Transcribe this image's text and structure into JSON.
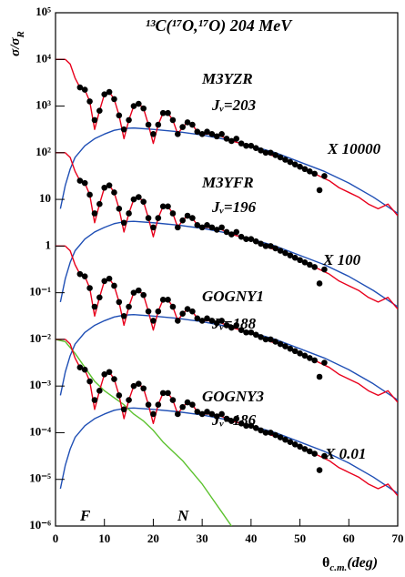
{
  "chart_data": {
    "type": "line",
    "title": "¹³C(¹⁷O,¹⁷O) 204 MeV",
    "ylabel": "σ/σ",
    "ylabel_sub": "R",
    "xlabel": "θ",
    "xlabel_sub": "c.m.",
    "xlabel_unit": "(deg)",
    "yscale": "log",
    "grid": false,
    "xlim": [
      0,
      70
    ],
    "xticks": [
      0,
      10,
      20,
      30,
      40,
      50,
      60,
      70
    ],
    "ylim": [
      1e-06,
      100000.0
    ],
    "yticks": [
      {
        "value": 100000.0,
        "label": "10⁵"
      },
      {
        "value": 10000.0,
        "label": "10⁴"
      },
      {
        "value": 1000.0,
        "label": "10³"
      },
      {
        "value": 100.0,
        "label": "10²"
      },
      10,
      1,
      {
        "value": 0.1,
        "label": "10⁻¹"
      },
      {
        "value": 0.01,
        "label": "10⁻²"
      },
      {
        "value": 0.001,
        "label": "10⁻³"
      },
      {
        "value": 0.0001,
        "label": "10⁻⁴"
      },
      {
        "value": 1e-05,
        "label": "10⁻⁵"
      },
      {
        "value": 1e-06,
        "label": "10⁻⁶"
      }
    ],
    "annotations": [
      "M3YZR",
      "Jᵥ=203",
      "X 10000",
      "M3YFR",
      "Jᵥ=196",
      "GOGNY1",
      "Jᵥ=188",
      "X 100",
      "GOGNY3",
      "Jᵥ=186",
      "X 0.01",
      "F",
      "N"
    ],
    "series": [
      {
        "mode": "lines",
        "color": "#1f4fb5",
        "x": [
          1,
          2,
          3,
          4,
          6,
          8,
          10,
          12,
          14,
          16,
          20,
          25,
          30,
          35,
          40,
          45,
          50,
          55,
          60,
          65,
          70
        ],
        "values": [
          6.31,
          20.0,
          44.7,
          79.4,
          141.0,
          200.0,
          251.0,
          302.0,
          331.0,
          339.0,
          316.0,
          282.0,
          240.0,
          191.0,
          141.0,
          100.0,
          63.1,
          39.8,
          22.4,
          11.2,
          5.01
        ]
      },
      {
        "mode": "lines",
        "color": "#1f4fb5",
        "x": [
          1,
          2,
          3,
          4,
          6,
          8,
          10,
          12,
          14,
          16,
          20,
          25,
          30,
          35,
          40,
          45,
          50,
          55,
          60,
          65,
          70
        ],
        "values": [
          0.0631,
          0.2,
          0.447,
          0.794,
          1.41,
          2.0,
          2.51,
          3.02,
          3.31,
          3.39,
          3.16,
          2.82,
          2.4,
          1.91,
          1.41,
          1.0,
          0.631,
          0.398,
          0.224,
          0.112,
          0.0501
        ]
      },
      {
        "mode": "lines",
        "color": "#1f4fb5",
        "x": [
          1,
          2,
          3,
          4,
          6,
          8,
          10,
          12,
          14,
          16,
          20,
          25,
          30,
          35,
          40,
          45,
          50,
          55,
          60,
          65,
          70
        ],
        "values": [
          0.000631,
          0.002,
          0.00447,
          0.00794,
          0.0141,
          0.02,
          0.0251,
          0.0302,
          0.0331,
          0.0339,
          0.0316,
          0.0282,
          0.024,
          0.0191,
          0.0141,
          0.01,
          0.00631,
          0.00398,
          0.00224,
          0.00112,
          0.000501
        ]
      },
      {
        "mode": "lines",
        "color": "#1f4fb5",
        "x": [
          1,
          2,
          3,
          4,
          6,
          8,
          10,
          12,
          14,
          16,
          20,
          25,
          30,
          35,
          40,
          45,
          50,
          55,
          60,
          65,
          70
        ],
        "values": [
          6.31e-06,
          2e-05,
          4.47e-05,
          7.94e-05,
          0.000141,
          0.0002,
          0.000251,
          0.000302,
          0.000331,
          0.000339,
          0.000316,
          0.000282,
          0.00024,
          0.000191,
          0.000141,
          0.0001,
          6.31e-05,
          3.98e-05,
          2.24e-05,
          1.12e-05,
          5.01e-06
        ]
      },
      {
        "mode": "lines",
        "color": "#5cc22e",
        "x": [
          0,
          2,
          4,
          6,
          8,
          10,
          12,
          14,
          16,
          18,
          20,
          22,
          24,
          26,
          28,
          30,
          32,
          34,
          36
        ],
        "values": [
          0.01,
          0.00891,
          0.00501,
          0.00251,
          0.00126,
          0.000794,
          0.000562,
          0.000398,
          0.000251,
          0.000178,
          0.000112,
          6.31e-05,
          3.98e-05,
          2.51e-05,
          1.41e-05,
          7.94e-06,
          3.98e-06,
          2e-06,
          1e-06
        ]
      },
      {
        "mode": "lines",
        "color": "#e8001c",
        "x": [
          0,
          1,
          2,
          3,
          4,
          5,
          6,
          7,
          8,
          9,
          10,
          11,
          12,
          13,
          14,
          15,
          16,
          17,
          18,
          19,
          20,
          21,
          22,
          23,
          24,
          25,
          26,
          27,
          28,
          29,
          30,
          32,
          34,
          36,
          38,
          40,
          42,
          44,
          46,
          48,
          50,
          52,
          54,
          56,
          58,
          60,
          62,
          64,
          66,
          68,
          70
        ],
        "values": [
          10000.0,
          10000.0,
          10000.0,
          7940.0,
          3980.0,
          2510.0,
          2240.0,
          1260.0,
          316.0,
          794.0,
          1780.0,
          2000.0,
          1410.0,
          631.0,
          200.0,
          501.0,
          1000.0,
          1120.0,
          891.0,
          398.0,
          158.0,
          398.0,
          708.0,
          708.0,
          501.0,
          251.0,
          355.0,
          447.0,
          398.0,
          282.0,
          251.0,
          251.0,
          224.0,
          178.0,
          158.0,
          141.0,
          112.0,
          89.1,
          79.4,
          63.1,
          50.1,
          39.8,
          31.6,
          25.1,
          17.8,
          14.1,
          11.2,
          7.94,
          6.31,
          7.94,
          4.47
        ]
      },
      {
        "mode": "lines",
        "color": "#e8001c",
        "x": [
          0,
          1,
          2,
          3,
          4,
          5,
          6,
          7,
          8,
          9,
          10,
          11,
          12,
          13,
          14,
          15,
          16,
          17,
          18,
          19,
          20,
          21,
          22,
          23,
          24,
          25,
          26,
          27,
          28,
          29,
          30,
          32,
          34,
          36,
          38,
          40,
          42,
          44,
          46,
          48,
          50,
          52,
          54,
          56,
          58,
          60,
          62,
          64,
          66,
          68,
          70
        ],
        "values": [
          100.0,
          100.0,
          100.0,
          79.4,
          39.8,
          25.1,
          22.4,
          12.6,
          3.16,
          7.94,
          17.8,
          20.0,
          14.1,
          6.31,
          2.0,
          5.01,
          10.0,
          11.2,
          8.91,
          3.98,
          1.58,
          3.98,
          7.08,
          7.08,
          5.01,
          2.51,
          3.55,
          4.47,
          3.98,
          2.82,
          2.51,
          2.51,
          2.24,
          1.78,
          1.58,
          1.41,
          1.12,
          0.891,
          0.794,
          0.631,
          0.501,
          0.398,
          0.316,
          0.251,
          0.178,
          0.141,
          0.112,
          0.0794,
          0.0631,
          0.0794,
          0.0447
        ]
      },
      {
        "mode": "lines",
        "color": "#e8001c",
        "x": [
          0,
          1,
          2,
          3,
          4,
          5,
          6,
          7,
          8,
          9,
          10,
          11,
          12,
          13,
          14,
          15,
          16,
          17,
          18,
          19,
          20,
          21,
          22,
          23,
          24,
          25,
          26,
          27,
          28,
          29,
          30,
          32,
          34,
          36,
          38,
          40,
          42,
          44,
          46,
          48,
          50,
          52,
          54,
          56,
          58,
          60,
          62,
          64,
          66,
          68,
          70
        ],
        "values": [
          1,
          1,
          1,
          0.794,
          0.398,
          0.251,
          0.224,
          0.126,
          0.0316,
          0.0794,
          0.178,
          0.2,
          0.141,
          0.0631,
          0.02,
          0.0501,
          0.1,
          0.112,
          0.0891,
          0.0398,
          0.0158,
          0.0398,
          0.0708,
          0.0708,
          0.0501,
          0.0251,
          0.0355,
          0.0447,
          0.0398,
          0.0282,
          0.0251,
          0.0251,
          0.0224,
          0.0178,
          0.0158,
          0.0141,
          0.0112,
          0.00891,
          0.00794,
          0.00631,
          0.00501,
          0.00398,
          0.00316,
          0.00251,
          0.00178,
          0.00141,
          0.00112,
          0.000794,
          0.000631,
          0.000794,
          0.000447
        ]
      },
      {
        "mode": "lines",
        "color": "#e8001c",
        "x": [
          0,
          1,
          2,
          3,
          4,
          5,
          6,
          7,
          8,
          9,
          10,
          11,
          12,
          13,
          14,
          15,
          16,
          17,
          18,
          19,
          20,
          21,
          22,
          23,
          24,
          25,
          26,
          27,
          28,
          29,
          30,
          32,
          34,
          36,
          38,
          40,
          42,
          44,
          46,
          48,
          50,
          52,
          54,
          56,
          58,
          60,
          62,
          64,
          66,
          68,
          70
        ],
        "values": [
          0.01,
          0.01,
          0.01,
          0.00794,
          0.00398,
          0.00251,
          0.00224,
          0.00126,
          0.000316,
          0.000794,
          0.00178,
          0.002,
          0.00141,
          0.000631,
          0.0002,
          0.000501,
          0.001,
          0.00112,
          0.000891,
          0.000398,
          0.000158,
          0.000398,
          0.000708,
          0.000708,
          0.000501,
          0.000251,
          0.000355,
          0.000447,
          0.000398,
          0.000282,
          0.000251,
          0.000251,
          0.000224,
          0.000178,
          0.000158,
          0.000141,
          0.000112,
          8.91e-05,
          7.94e-05,
          6.31e-05,
          5.01e-05,
          3.98e-05,
          3.16e-05,
          2.51e-05,
          1.78e-05,
          1.41e-05,
          1.12e-05,
          7.94e-06,
          6.31e-06,
          7.94e-06,
          4.47e-06
        ]
      },
      {
        "mode": "markers",
        "color": "#000000",
        "x": [
          5,
          6,
          7,
          8,
          9,
          10,
          11,
          12,
          13,
          14,
          15,
          16,
          17,
          18,
          19,
          20,
          21,
          22,
          23,
          24,
          25,
          26,
          27,
          28,
          29,
          30,
          31,
          32,
          33,
          34,
          35,
          36,
          37,
          38,
          39,
          40,
          41,
          42,
          43,
          44,
          45,
          46,
          47,
          48,
          49,
          50,
          51,
          52,
          53,
          54,
          55
        ],
        "values": [
          2510.0,
          2240.0,
          1260.0,
          501.0,
          794.0,
          1780.0,
          2000.0,
          1410.0,
          631.0,
          316.0,
          501.0,
          1000.0,
          1120.0,
          891.0,
          398.0,
          251.0,
          398.0,
          708.0,
          708.0,
          501.0,
          251.0,
          355.0,
          447.0,
          398.0,
          282.0,
          251.0,
          282.0,
          251.0,
          224.0,
          251.0,
          200.0,
          178.0,
          200.0,
          158.0,
          141.0,
          141.0,
          126.0,
          112.0,
          100.0,
          100.0,
          89.1,
          79.4,
          70.8,
          63.1,
          56.2,
          50.1,
          44.7,
          39.8,
          35.5,
          15.8,
          31.6
        ]
      },
      {
        "mode": "markers",
        "color": "#000000",
        "x": [
          5,
          6,
          7,
          8,
          9,
          10,
          11,
          12,
          13,
          14,
          15,
          16,
          17,
          18,
          19,
          20,
          21,
          22,
          23,
          24,
          25,
          26,
          27,
          28,
          29,
          30,
          31,
          32,
          33,
          34,
          35,
          36,
          37,
          38,
          39,
          40,
          41,
          42,
          43,
          44,
          45,
          46,
          47,
          48,
          49,
          50,
          51,
          52,
          53,
          54,
          55
        ],
        "values": [
          25.1,
          22.4,
          12.6,
          5.01,
          7.94,
          17.8,
          20.0,
          14.1,
          6.31,
          3.16,
          5.01,
          10.0,
          11.2,
          8.91,
          3.98,
          2.51,
          3.98,
          7.08,
          7.08,
          5.01,
          2.51,
          3.55,
          4.47,
          3.98,
          2.82,
          2.51,
          2.82,
          2.51,
          2.24,
          2.51,
          2.0,
          1.78,
          2.0,
          1.58,
          1.41,
          1.41,
          1.26,
          1.12,
          1.0,
          1.0,
          0.891,
          0.794,
          0.708,
          0.631,
          0.562,
          0.501,
          0.447,
          0.398,
          0.355,
          0.158,
          0.316
        ]
      },
      {
        "mode": "markers",
        "color": "#000000",
        "x": [
          5,
          6,
          7,
          8,
          9,
          10,
          11,
          12,
          13,
          14,
          15,
          16,
          17,
          18,
          19,
          20,
          21,
          22,
          23,
          24,
          25,
          26,
          27,
          28,
          29,
          30,
          31,
          32,
          33,
          34,
          35,
          36,
          37,
          38,
          39,
          40,
          41,
          42,
          43,
          44,
          45,
          46,
          47,
          48,
          49,
          50,
          51,
          52,
          53,
          54,
          55
        ],
        "values": [
          0.251,
          0.224,
          0.126,
          0.0501,
          0.0794,
          0.178,
          0.2,
          0.141,
          0.0631,
          0.0316,
          0.0501,
          0.1,
          0.112,
          0.0891,
          0.0398,
          0.0251,
          0.0398,
          0.0708,
          0.0708,
          0.0501,
          0.0251,
          0.0355,
          0.0447,
          0.0398,
          0.0282,
          0.0251,
          0.0282,
          0.0251,
          0.0224,
          0.0251,
          0.02,
          0.0178,
          0.02,
          0.0158,
          0.0141,
          0.0141,
          0.0126,
          0.0112,
          0.01,
          0.01,
          0.00891,
          0.00794,
          0.00708,
          0.00631,
          0.00562,
          0.00501,
          0.00447,
          0.00398,
          0.00355,
          0.00158,
          0.00316
        ]
      },
      {
        "mode": "markers",
        "color": "#000000",
        "x": [
          5,
          6,
          7,
          8,
          9,
          10,
          11,
          12,
          13,
          14,
          15,
          16,
          17,
          18,
          19,
          20,
          21,
          22,
          23,
          24,
          25,
          26,
          27,
          28,
          29,
          30,
          31,
          32,
          33,
          34,
          35,
          36,
          37,
          38,
          39,
          40,
          41,
          42,
          43,
          44,
          45,
          46,
          47,
          48,
          49,
          50,
          51,
          52,
          53,
          54,
          55
        ],
        "values": [
          0.00251,
          0.00224,
          0.00126,
          0.000501,
          0.000794,
          0.00178,
          0.002,
          0.00141,
          0.000631,
          0.000316,
          0.000501,
          0.001,
          0.00112,
          0.000891,
          0.000398,
          0.000251,
          0.000398,
          0.000708,
          0.000708,
          0.000501,
          0.000251,
          0.000355,
          0.000447,
          0.000398,
          0.000282,
          0.000251,
          0.000282,
          0.000251,
          0.000224,
          0.000251,
          0.0002,
          0.000178,
          0.0002,
          0.000158,
          0.000141,
          0.000141,
          0.000126,
          0.000112,
          0.0001,
          0.0001,
          8.91e-05,
          7.94e-05,
          7.08e-05,
          6.31e-05,
          5.62e-05,
          5.01e-05,
          4.47e-05,
          3.98e-05,
          3.55e-05,
          1.58e-05,
          3.16e-05
        ]
      }
    ]
  }
}
